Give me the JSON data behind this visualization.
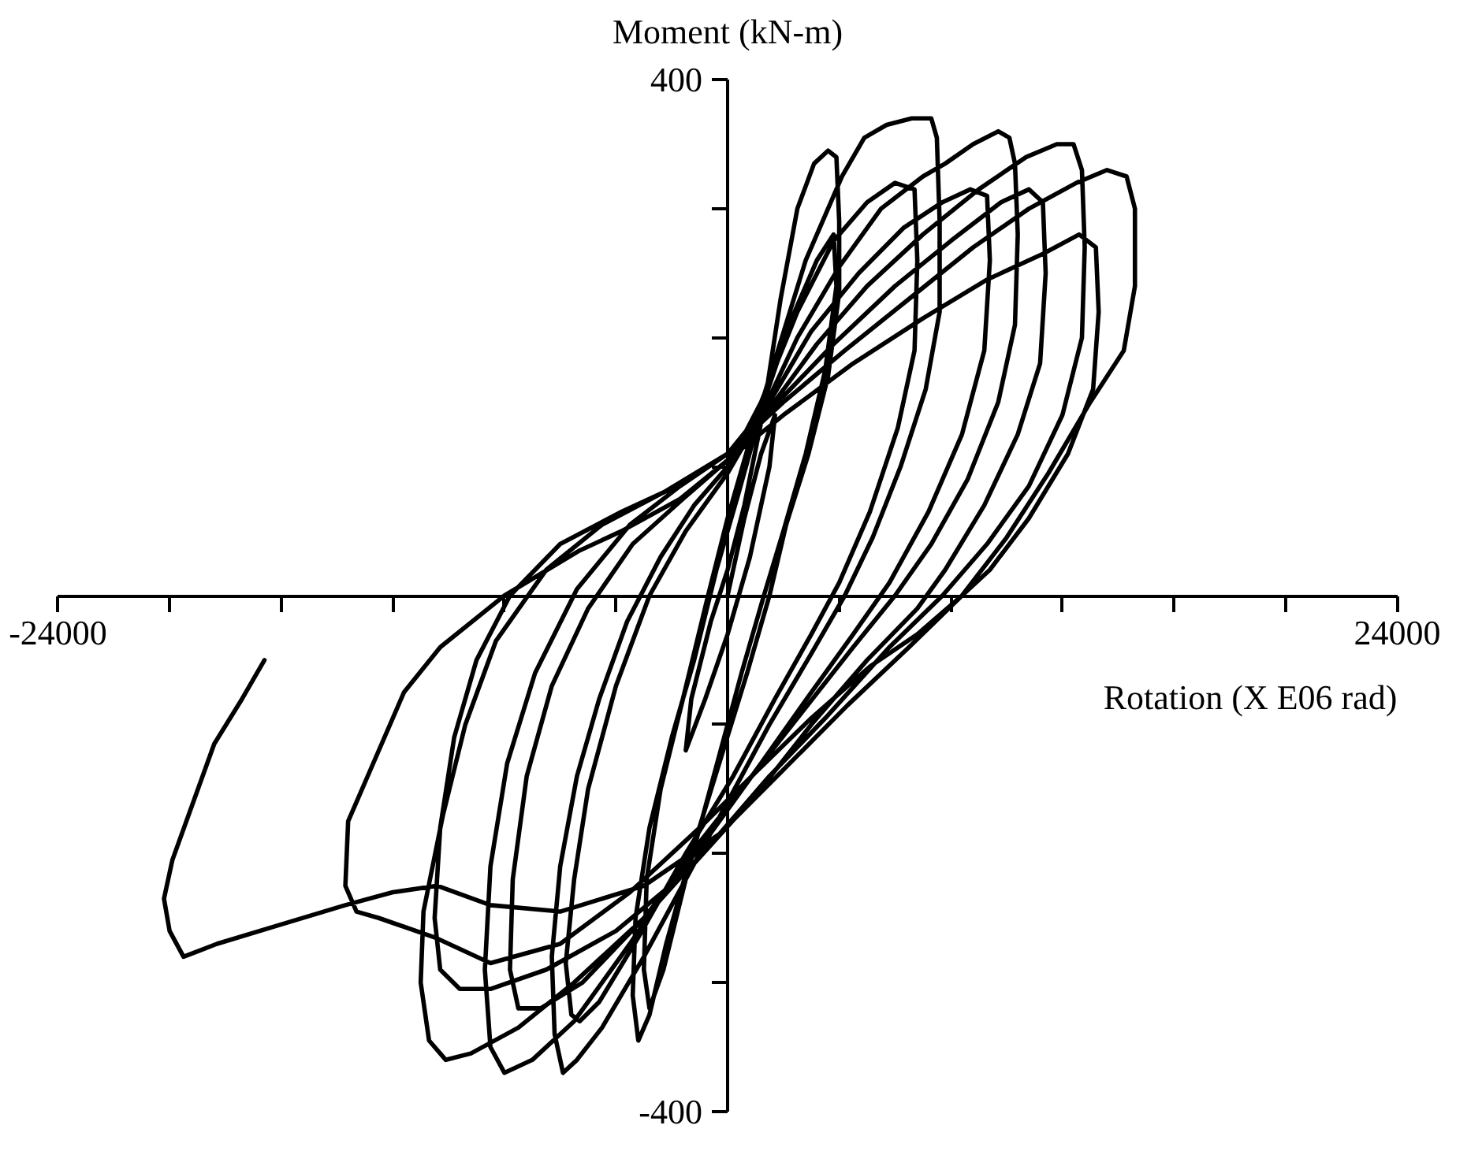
{
  "chart_data": {
    "type": "line",
    "xlabel": "Rotation (X E06 rad)",
    "ylabel": "Moment (kN-m)",
    "xlim": [
      -24000,
      24000
    ],
    "ylim": [
      -400,
      400
    ],
    "xticks": [
      -24000,
      {
        "value": -20000,
        "label": null
      },
      {
        "value": -16000,
        "label": null
      },
      {
        "value": -12000,
        "label": null
      },
      {
        "value": -8000,
        "label": null
      },
      {
        "value": -4000,
        "label": null
      },
      {
        "value": 0,
        "label": null
      },
      {
        "value": 4000,
        "label": null
      },
      {
        "value": 8000,
        "label": null
      },
      {
        "value": 12000,
        "label": null
      },
      {
        "value": 16000,
        "label": null
      },
      {
        "value": 20000,
        "label": null
      },
      24000
    ],
    "yticks": [
      -400,
      {
        "value": -300,
        "label": null
      },
      {
        "value": -200,
        "label": null
      },
      {
        "value": -100,
        "label": null
      },
      {
        "value": 0,
        "label": null
      },
      {
        "value": 100,
        "label": null
      },
      {
        "value": 200,
        "label": null
      },
      {
        "value": 300,
        "label": null
      },
      400
    ],
    "line_style": "solid",
    "series": [
      {
        "color": "#000000",
        "x": [
          0,
          600,
          1200,
          1700,
          1500,
          800,
          0,
          -800,
          -1500,
          -1300,
          -600,
          0,
          600,
          1300,
          1900,
          2500,
          3100,
          3600,
          3900,
          4000,
          4000,
          3600,
          2900,
          2100,
          1500,
          700,
          -300,
          -1300,
          -2200,
          -2800,
          -3200,
          -3400,
          -3300,
          -2800,
          -2000,
          -1200,
          -400,
          400,
          1300,
          2300,
          3200,
          3800,
          3900,
          3500,
          2800,
          2000,
          1300,
          500,
          -500,
          -1500,
          -2300,
          -2800,
          -3000,
          -2900,
          -2400,
          -1600,
          -700,
          0,
          800,
          1800,
          2800,
          3600,
          4100,
          4900,
          5700,
          6600,
          7300,
          7500,
          7600,
          7600,
          7100,
          6200,
          5200,
          4200,
          3000,
          1500,
          0,
          -1500,
          -3000,
          -4500,
          -5400,
          -5900,
          -6200,
          -6300,
          -6000,
          -5400,
          -4600,
          -3600,
          -2400,
          -1200,
          0,
          1200,
          2500,
          3800,
          5000,
          6000,
          6700,
          6800,
          6700,
          6100,
          5100,
          4000,
          3000,
          1700,
          200,
          -1500,
          -3200,
          -4600,
          -5300,
          -5600,
          -5800,
          -5500,
          -5000,
          -4000,
          -2800,
          -1500,
          0,
          1200,
          2500,
          4000,
          5500,
          7000,
          7800,
          8800,
          9700,
          10100,
          10300,
          10400,
          10300,
          9700,
          8600,
          7300,
          6000,
          4500,
          2500,
          500,
          -1500,
          -3500,
          -5500,
          -7000,
          -8000,
          -8500,
          -8700,
          -8500,
          -7900,
          -6900,
          -5400,
          -3500,
          -1700,
          0,
          1500,
          3000,
          4700,
          6300,
          7700,
          8700,
          9300,
          9400,
          9200,
          8400,
          7200,
          5800,
          4500,
          3000,
          1200,
          -800,
          -3000,
          -5200,
          -6700,
          -7500,
          -7800,
          -7700,
          -7200,
          -6300,
          -5000,
          -3400,
          -1600,
          0,
          1500,
          3200,
          5000,
          7000,
          9000,
          10700,
          11800,
          12400,
          12700,
          12800,
          12700,
          12000,
          10800,
          9300,
          7700,
          5800,
          3500,
          1500,
          -500,
          -3000,
          -5500,
          -7500,
          -9200,
          -10100,
          -10700,
          -11000,
          -10900,
          -10200,
          -9400,
          -8300,
          -6500,
          -4500,
          -2300,
          0,
          1800,
          3800,
          6000,
          8000,
          9800,
          10800,
          11300,
          11400,
          11200,
          10400,
          9200,
          7800,
          6800,
          5000,
          3000,
          1000,
          -1500,
          -4000,
          -6500,
          -8500,
          -9600,
          -10300,
          -10500,
          -10300,
          -9800,
          -9000,
          -7800,
          -6000,
          -3800,
          -1800,
          0,
          2000,
          4200,
          6500,
          8800,
          10800,
          12500,
          13600,
          14300,
          14600,
          14600,
          14200,
          13000,
          11500,
          10000,
          8400,
          6800,
          5100,
          3000,
          1100,
          -1000,
          -3500,
          -6000,
          -8500,
          -10500,
          -12500,
          -13300,
          -13700,
          -13600,
          -12800,
          -11600,
          -10300,
          -8000,
          -5300,
          -3800,
          -1700,
          0,
          2000,
          4500,
          7000,
          9300,
          11300,
          12600,
          13200,
          13300,
          13100,
          12200,
          10800,
          9400,
          8400,
          6500,
          4300,
          2000,
          -300,
          -3000,
          -6000,
          -8500,
          -10400,
          -12000,
          -13700,
          -16000,
          -18300,
          -19500,
          -20000,
          -20200,
          -19900,
          -18400,
          -17400,
          -16600
        ],
        "values": [
          0,
          60,
          110,
          140,
          100,
          30,
          -30,
          -80,
          -120,
          -80,
          -20,
          20,
          70,
          145,
          230,
          300,
          335,
          345,
          340,
          290,
          235,
          170,
          110,
          55,
          0,
          -60,
          -130,
          -200,
          -270,
          -325,
          -345,
          -310,
          -250,
          -180,
          -110,
          -50,
          20,
          80,
          150,
          215,
          260,
          280,
          240,
          175,
          110,
          50,
          0,
          -60,
          -140,
          -220,
          -290,
          -320,
          -290,
          -220,
          -150,
          -80,
          0,
          60,
          120,
          190,
          260,
          300,
          325,
          355,
          365,
          370,
          370,
          355,
          290,
          220,
          160,
          100,
          45,
          0,
          -45,
          -100,
          -160,
          -220,
          -280,
          -335,
          -360,
          -370,
          -340,
          -280,
          -210,
          -140,
          -80,
          -20,
          30,
          70,
          100,
          150,
          220,
          275,
          305,
          320,
          315,
          260,
          190,
          130,
          65,
          10,
          -30,
          -80,
          -140,
          -200,
          -265,
          -315,
          -330,
          -325,
          -285,
          -220,
          -150,
          -70,
          0,
          50,
          95,
          140,
          200,
          255,
          300,
          325,
          335,
          350,
          360,
          355,
          335,
          280,
          210,
          150,
          90,
          40,
          0,
          -40,
          -95,
          -150,
          -205,
          -270,
          -330,
          -360,
          -370,
          -350,
          -290,
          -210,
          -130,
          -60,
          5,
          55,
          85,
          110,
          150,
          205,
          250,
          285,
          305,
          315,
          310,
          260,
          190,
          125,
          65,
          10,
          -30,
          -75,
          -130,
          -190,
          -250,
          -300,
          -320,
          -320,
          -290,
          -220,
          -140,
          -70,
          -10,
          40,
          75,
          105,
          145,
          195,
          240,
          280,
          315,
          340,
          350,
          350,
          330,
          270,
          200,
          140,
          85,
          40,
          0,
          -40,
          -95,
          -140,
          -190,
          -250,
          -300,
          -335,
          -355,
          -360,
          -345,
          -300,
          -245,
          -170,
          -100,
          -35,
          20,
          55,
          80,
          110,
          150,
          195,
          240,
          275,
          305,
          315,
          305,
          250,
          180,
          125,
          70,
          20,
          -10,
          -50,
          -100,
          -155,
          -215,
          -260,
          -290,
          -305,
          -305,
          -290,
          -250,
          -180,
          -110,
          -50,
          0,
          40,
          65,
          85,
          110,
          150,
          190,
          230,
          270,
          300,
          320,
          330,
          325,
          300,
          240,
          190,
          150,
          95,
          45,
          0,
          -30,
          -55,
          -95,
          -135,
          -180,
          -230,
          -270,
          -285,
          -265,
          -250,
          -245,
          -225,
          -175,
          -135,
          -75,
          -40,
          0,
          35,
          50,
          75,
          105,
          140,
          180,
          215,
          245,
          265,
          280,
          270,
          220,
          160,
          110,
          60,
          20,
          0,
          -40,
          -85,
          -135,
          -185,
          -225,
          -245,
          -240,
          -225,
          -230,
          -240,
          -255,
          -270,
          -280,
          -260,
          -235,
          -205,
          -115,
          -80,
          -50
        ]
      }
    ]
  }
}
